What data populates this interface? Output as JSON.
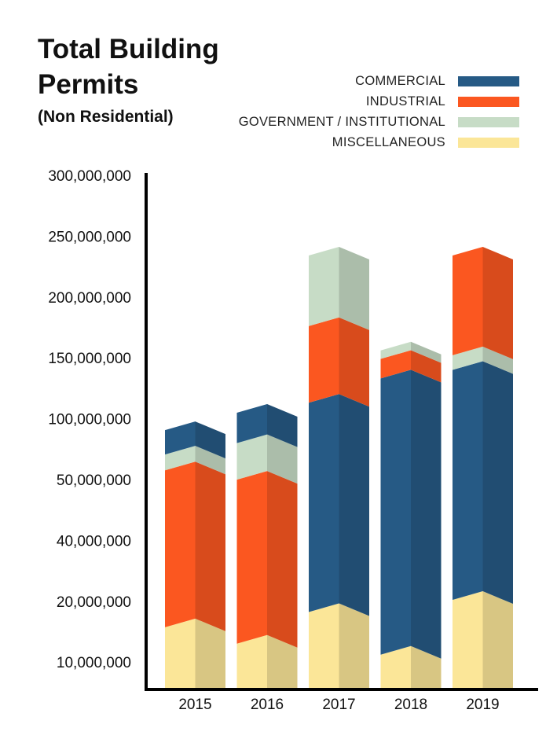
{
  "chart_data": {
    "type": "bar",
    "stacked": true,
    "title": "Total Building Permits",
    "subtitle": "(Non Residential)",
    "categories": [
      "2015",
      "2016",
      "2017",
      "2018",
      "2019"
    ],
    "y_tick_labels": [
      "10,000,000",
      "20,000,000",
      "40,000,000",
      "50,000,000",
      "100,000,000",
      "150,000,000",
      "200,000,000",
      "250,000,000",
      "300,000,000"
    ],
    "y_tick_values": [
      10000000,
      20000000,
      40000000,
      50000000,
      100000000,
      150000000,
      200000000,
      250000000,
      300000000
    ],
    "ylim": [
      0,
      300000000
    ],
    "y_scale": "non-uniform (ticks as labeled)",
    "legend_position": "top-right",
    "grid": false,
    "series": [
      {
        "name": "MISCELLANEOUS",
        "color": "#fbe698",
        "values": [
          16500000,
          13800000,
          19000000,
          12000000,
          22000000
        ]
      },
      {
        "name": "COMMERCIAL",
        "color": "#265a85",
        "values": [
          20000000,
          25000000,
          98000000,
          125000000,
          122000000
        ]
      },
      {
        "name": "GOVERNMENT / INSTITUTIONAL",
        "color": "#c7dcc6",
        "values": [
          13000000,
          30000000,
          58000000,
          7000000,
          12000000
        ]
      },
      {
        "name": "INDUSTRIAL",
        "color": "#fb5720",
        "values": [
          45000000,
          40000000,
          63000000,
          16000000,
          82000000
        ]
      }
    ],
    "legend_order": [
      "COMMERCIAL",
      "INDUSTRIAL",
      "GOVERNMENT / INSTITUTIONAL",
      "MISCELLANEOUS"
    ],
    "stack_order_by_category": [
      [
        "MISCELLANEOUS",
        "INDUSTRIAL",
        "GOVERNMENT / INSTITUTIONAL",
        "COMMERCIAL"
      ],
      [
        "MISCELLANEOUS",
        "INDUSTRIAL",
        "GOVERNMENT / INSTITUTIONAL",
        "COMMERCIAL"
      ],
      [
        "MISCELLANEOUS",
        "COMMERCIAL",
        "INDUSTRIAL",
        "GOVERNMENT / INSTITUTIONAL"
      ],
      [
        "MISCELLANEOUS",
        "COMMERCIAL",
        "INDUSTRIAL",
        "GOVERNMENT / INSTITUTIONAL"
      ],
      [
        "MISCELLANEOUS",
        "COMMERCIAL",
        "GOVERNMENT / INSTITUTIONAL",
        "INDUSTRIAL"
      ]
    ]
  }
}
